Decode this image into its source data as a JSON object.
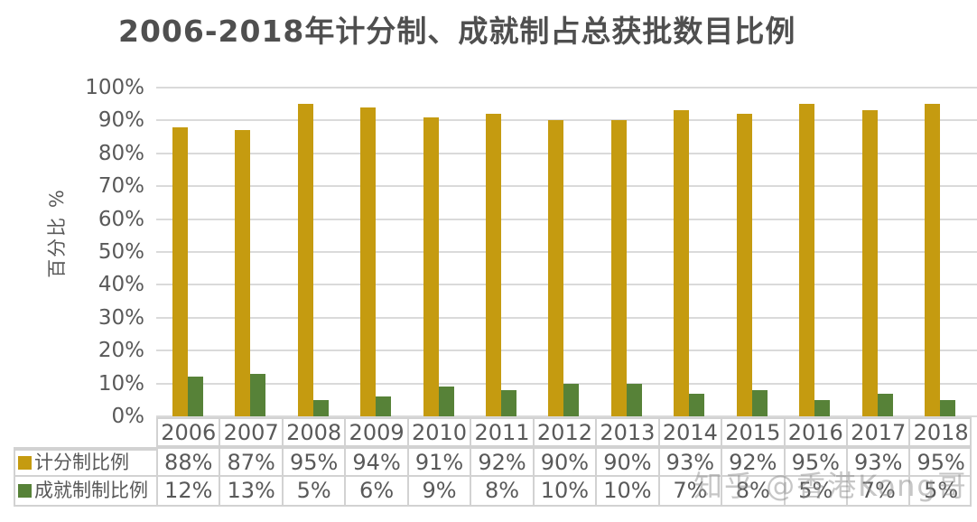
{
  "title": "2006-2018年计分制、成就制占总获批数目比例",
  "watermark": "知乎 @香港Kong哥",
  "colors": {
    "series1": "#C59B10",
    "series2": "#578238",
    "text": "#595959",
    "grid": "#DADADA",
    "table_border": "#D2D2D2",
    "title_text": "#4F4F4F"
  },
  "chart_data": {
    "type": "bar",
    "title": "2006-2018年计分制、成就制占总获批数目比例",
    "ylabel": "百分比 %",
    "xlabel": "",
    "ylim": [
      0,
      100
    ],
    "grid": true,
    "legend_position": "table-left",
    "yticks": [
      "0%",
      "10%",
      "20%",
      "30%",
      "40%",
      "50%",
      "60%",
      "70%",
      "80%",
      "90%",
      "100%"
    ],
    "categories": [
      "2006",
      "2007",
      "2008",
      "2009",
      "2010",
      "2011",
      "2012",
      "2013",
      "2014",
      "2015",
      "2016",
      "2017",
      "2018"
    ],
    "series": [
      {
        "name": "计分制比例",
        "color": "#C59B10",
        "values": [
          88,
          87,
          95,
          94,
          91,
          92,
          90,
          90,
          93,
          92,
          95,
          93,
          95
        ],
        "labels": [
          "88%",
          "87%",
          "95%",
          "94%",
          "91%",
          "92%",
          "90%",
          "90%",
          "93%",
          "92%",
          "95%",
          "93%",
          "95%"
        ]
      },
      {
        "name": "成就制制比例",
        "color": "#578238",
        "values": [
          12,
          13,
          5,
          6,
          9,
          8,
          10,
          10,
          7,
          8,
          5,
          7,
          5
        ],
        "labels": [
          "12%",
          "13%",
          "5%",
          "6%",
          "9%",
          "8%",
          "10%",
          "10%",
          "7%",
          "8%",
          "5%",
          "7%",
          "5%"
        ]
      }
    ]
  }
}
